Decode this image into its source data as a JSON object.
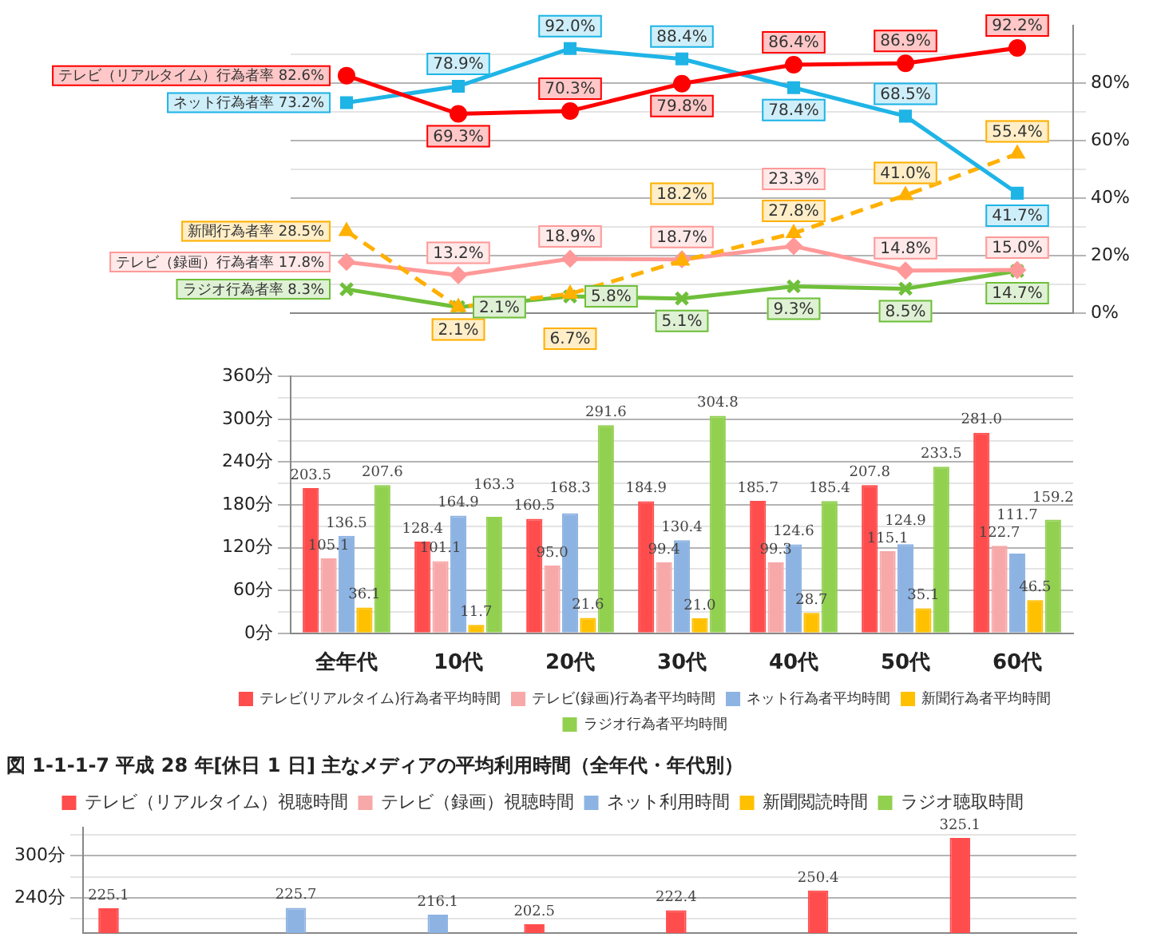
{
  "chart_data": [
    {
      "type": "line",
      "categories": [
        null,
        null,
        null,
        null,
        null,
        null,
        null
      ],
      "tick_labels": "y",
      "ylim": [
        0,
        100
      ],
      "yticks": [
        {
          "value": 0,
          "label": "0%"
        },
        {
          "value": 10,
          "label": null
        },
        {
          "value": 20,
          "label": "20%"
        },
        {
          "value": 30,
          "label": null
        },
        {
          "value": 40,
          "label": "40%"
        },
        {
          "value": 50,
          "label": null
        },
        {
          "value": 60,
          "label": "60%"
        },
        {
          "value": 70,
          "label": null
        },
        {
          "value": 80,
          "label": "80%"
        },
        {
          "value": 90,
          "label": null
        }
      ],
      "grid": "y",
      "data_labels": true,
      "series": [
        {
          "name": "テレビ（リアルタイム）行為者率",
          "color": "#ff0000",
          "marker": "circle",
          "line_style": "solid",
          "values": [
            82.6,
            69.3,
            70.3,
            79.8,
            86.4,
            86.9,
            92.2
          ],
          "value_labels": [
            "82.6%",
            "69.3%",
            "70.3%",
            "79.8%",
            "86.4%",
            "86.9%",
            "92.2%"
          ]
        },
        {
          "name": "ネット行為者率",
          "color": "#1fb4e6",
          "marker": "square",
          "line_style": "solid",
          "values": [
            73.2,
            78.9,
            92.0,
            88.4,
            78.4,
            68.5,
            41.7
          ],
          "value_labels": [
            "73.2%",
            "78.9%",
            "92.0%",
            "88.4%",
            "78.4%",
            "68.5%",
            "41.7%"
          ]
        },
        {
          "name": "新聞行為者率",
          "color": "#ffb000",
          "marker": "triangle",
          "line_style": "dashed",
          "values": [
            28.5,
            2.1,
            6.7,
            18.2,
            27.8,
            41.0,
            55.4
          ],
          "value_labels": [
            "28.5%",
            "2.1%",
            "6.7%",
            "18.2%",
            "27.8%",
            "41.0%",
            "55.4%"
          ]
        },
        {
          "name": "テレビ（録画）行為者率",
          "color": "#ff9999",
          "marker": "diamond",
          "line_style": "solid",
          "values": [
            17.8,
            13.2,
            18.9,
            18.7,
            23.3,
            14.8,
            15.0
          ],
          "value_labels": [
            "17.8%",
            "13.2%",
            "18.9%",
            "18.7%",
            "23.3%",
            "14.8%",
            "15.0%"
          ]
        },
        {
          "name": "ラジオ行為者率",
          "color": "#6fbf3a",
          "marker": "cross",
          "line_style": "solid",
          "values": [
            8.3,
            2.1,
            5.8,
            5.1,
            9.3,
            8.5,
            14.7
          ],
          "value_labels": [
            "8.3%",
            "2.1%",
            "5.8%",
            "5.1%",
            "9.3%",
            "8.5%",
            "14.7%"
          ]
        }
      ]
    },
    {
      "type": "bar",
      "categories": [
        "全年代",
        "10代",
        "20代",
        "30代",
        "40代",
        "50代",
        "60代"
      ],
      "ylim": [
        0,
        360
      ],
      "yticks": [
        {
          "value": 0,
          "label": "0分"
        },
        {
          "value": 30,
          "label": null
        },
        {
          "value": 60,
          "label": "60分"
        },
        {
          "value": 90,
          "label": null
        },
        {
          "value": 120,
          "label": "120分"
        },
        {
          "value": 150,
          "label": null
        },
        {
          "value": 180,
          "label": "180分"
        },
        {
          "value": 210,
          "label": null
        },
        {
          "value": 240,
          "label": "240分"
        },
        {
          "value": 270,
          "label": null
        },
        {
          "value": 300,
          "label": "300分"
        },
        {
          "value": 330,
          "label": null
        },
        {
          "value": 360,
          "label": "360分"
        }
      ],
      "grid": "y",
      "legend": "bottom",
      "data_labels": true,
      "series": [
        {
          "name": "テレビ(リアルタイム)行為者平均時間",
          "color": "#ff4d4d",
          "values": [
            203.5,
            128.4,
            160.5,
            184.9,
            185.7,
            207.8,
            281.0
          ],
          "value_labels": [
            "203.5",
            "128.4",
            "160.5",
            "184.9",
            "185.7",
            "207.8",
            "281.0"
          ]
        },
        {
          "name": "テレビ(録画)行為者平均時間",
          "color": "#f7a8a8",
          "values": [
            105.1,
            101.1,
            95.0,
            99.4,
            99.3,
            115.1,
            122.7
          ],
          "value_labels": [
            "105.1",
            "101.1",
            "95.0",
            "99.4",
            "99.3",
            "115.1",
            "122.7"
          ]
        },
        {
          "name": "ネット行為者平均時間",
          "color": "#8db3e2",
          "values": [
            136.5,
            164.9,
            168.3,
            130.4,
            124.6,
            124.9,
            111.7
          ],
          "value_labels": [
            "136.5",
            "164.9",
            "168.3",
            "130.4",
            "124.6",
            "124.9",
            "111.7"
          ]
        },
        {
          "name": "新聞行為者平均時間",
          "color": "#ffc000",
          "values": [
            36.1,
            11.7,
            21.6,
            21.0,
            28.7,
            35.1,
            46.5
          ],
          "value_labels": [
            "36.1",
            "11.7",
            "21.6",
            "21.0",
            "28.7",
            "35.1",
            "46.5"
          ]
        },
        {
          "name": "ラジオ行為者平均時間",
          "color": "#92d050",
          "values": [
            207.6,
            163.3,
            291.6,
            304.8,
            185.4,
            233.5,
            159.2
          ],
          "value_labels": [
            "207.6",
            "163.3",
            "291.6",
            "304.8",
            "185.4",
            "233.5",
            "159.2"
          ]
        }
      ]
    },
    {
      "type": "bar",
      "title": "図 1-1-1-7 平成 28 年[休日 1 日] 主なメディアの平均利用時間（全年代・年代別）",
      "categories": [
        null,
        null,
        null,
        null,
        null,
        null,
        null
      ],
      "tick_labels": "y",
      "ylim": [
        190,
        340
      ],
      "yticks": [
        {
          "value": 210,
          "label": null
        },
        {
          "value": 240,
          "label": "240分"
        },
        {
          "value": 270,
          "label": null
        },
        {
          "value": 300,
          "label": "300分"
        },
        {
          "value": 330,
          "label": null
        }
      ],
      "grid": "y",
      "legend": "top",
      "data_labels": true,
      "series": [
        {
          "name": "テレビ（リアルタイム）視聴時間",
          "color": "#ff4d4d",
          "values": [
            225.1,
            null,
            null,
            202.5,
            222.4,
            250.4,
            325.1
          ],
          "value_labels": [
            "225.1",
            null,
            null,
            "202.5",
            "222.4",
            "250.4",
            "325.1"
          ]
        },
        {
          "name": "テレビ（録画）視聴時間",
          "color": "#f7a8a8",
          "values": [
            null,
            null,
            null,
            null,
            null,
            null,
            null
          ]
        },
        {
          "name": "ネット利用時間",
          "color": "#8db3e2",
          "values": [
            null,
            225.7,
            216.1,
            null,
            null,
            null,
            null
          ],
          "value_labels": [
            null,
            "225.7",
            "216.1",
            null,
            null,
            null,
            null
          ]
        },
        {
          "name": "新聞閲読時間",
          "color": "#ffc000",
          "values": [
            null,
            null,
            null,
            null,
            null,
            null,
            null
          ]
        },
        {
          "name": "ラジオ聴取時間",
          "color": "#92d050",
          "values": [
            null,
            null,
            null,
            null,
            null,
            null,
            null
          ]
        }
      ]
    }
  ]
}
